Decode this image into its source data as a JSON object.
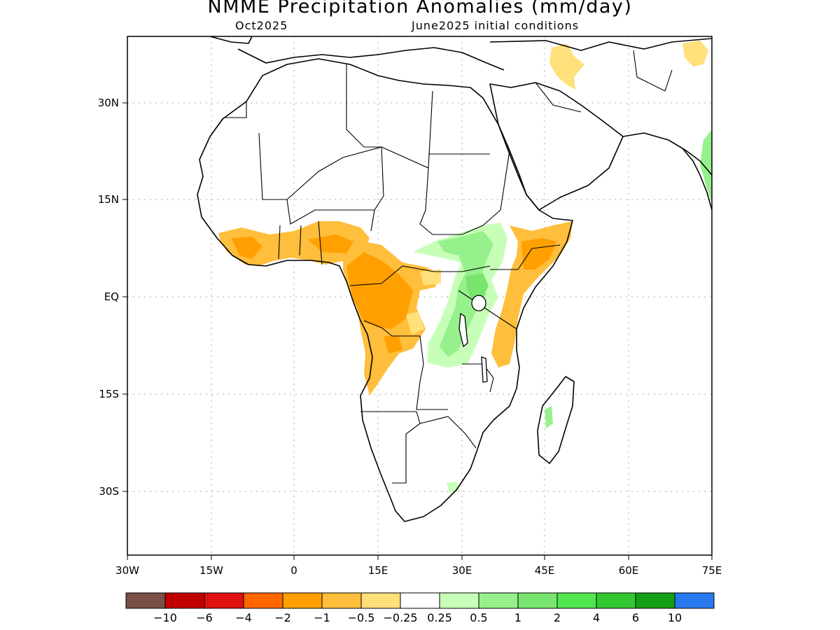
{
  "header": {
    "title": "NMME Precipitation Anomalies (mm/day)",
    "valid_month": "Oct2025",
    "init": "June2025 initial conditions"
  },
  "map": {
    "lon_ticks": [
      "30W",
      "15W",
      "0",
      "15E",
      "30E",
      "45E",
      "60E",
      "75E"
    ],
    "lat_ticks": [
      "30N",
      "15N",
      "EQ",
      "15S",
      "30S"
    ]
  },
  "legend": {
    "colors": [
      "#7b4f45",
      "#c00000",
      "#e01010",
      "#ff6600",
      "#ffa000",
      "#ffbe3c",
      "#ffe07a",
      "#ffffff",
      "#c8ffb8",
      "#96f08c",
      "#78e66e",
      "#50e650",
      "#32c832",
      "#14a014",
      "#2878f0"
    ],
    "labels": [
      "−10",
      "−6",
      "−4",
      "−2",
      "−1",
      "−0.5",
      "−0.25",
      "0.25",
      "0.5",
      "1",
      "2",
      "4",
      "6",
      "10"
    ]
  }
}
